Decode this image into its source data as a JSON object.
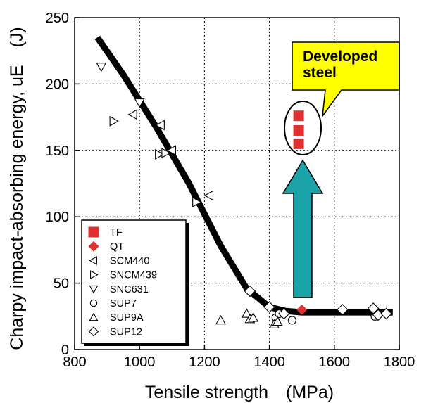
{
  "chart_data": {
    "type": "scatter",
    "title": "",
    "xlabel": "Tensile strength　(MPa)",
    "ylabel": "Charpy impact-absorbing energy, uE　(J)",
    "xlim": [
      800,
      1800
    ],
    "ylim": [
      0,
      250
    ],
    "x_ticks": [
      800,
      1000,
      1200,
      1400,
      1600,
      1800
    ],
    "y_ticks": [
      0,
      50,
      100,
      150,
      200,
      250
    ],
    "grid": "dotted",
    "legend_position": "bottom-left",
    "colors": {
      "developed": "#e03030",
      "trend": "#000000",
      "arrow": "#1aa3a8",
      "callout": "#ffff00"
    },
    "trend_line": {
      "x": [
        870,
        950,
        1050,
        1150,
        1250,
        1330,
        1400,
        1450,
        1500,
        1600,
        1700,
        1780
      ],
      "y": [
        235,
        207,
        168,
        126,
        78,
        46,
        32,
        29,
        28,
        28,
        28,
        28
      ]
    },
    "series": [
      {
        "name": "TF",
        "marker": "square-filled",
        "color": "#e03030",
        "points": [
          [
            1490,
            176
          ],
          [
            1490,
            165
          ],
          [
            1490,
            155
          ]
        ]
      },
      {
        "name": "QT",
        "marker": "diamond-filled",
        "color": "#e03030",
        "points": [
          [
            1500,
            30
          ]
        ]
      },
      {
        "name": "SCM440",
        "marker": "triangle-left",
        "color": "#000000",
        "points": [
          [
            1065,
            169
          ],
          [
            1215,
            116
          ],
          [
            1100,
            150
          ],
          [
            980,
            177
          ]
        ]
      },
      {
        "name": "SNCM439",
        "marker": "triangle-right",
        "color": "#000000",
        "points": [
          [
            920,
            172
          ],
          [
            1060,
            147
          ],
          [
            1175,
            111
          ],
          [
            1080,
            148
          ]
        ]
      },
      {
        "name": "SNC631",
        "marker": "triangle-down",
        "color": "#000000",
        "points": [
          [
            882,
            213
          ],
          [
            1000,
            186
          ]
        ]
      },
      {
        "name": "SUP7",
        "marker": "circle",
        "color": "#000000",
        "points": [
          [
            1420,
            24
          ],
          [
            1430,
            27
          ],
          [
            1470,
            22
          ],
          [
            1725,
            25
          ]
        ]
      },
      {
        "name": "SUP9A",
        "marker": "triangle-up",
        "color": "#000000",
        "points": [
          [
            1250,
            22
          ],
          [
            1330,
            27
          ],
          [
            1340,
            23
          ],
          [
            1350,
            24
          ],
          [
            1415,
            19
          ],
          [
            1425,
            21
          ]
        ]
      },
      {
        "name": "SUP12",
        "marker": "diamond",
        "color": "#000000",
        "points": [
          [
            1340,
            44
          ],
          [
            1400,
            32
          ],
          [
            1445,
            27
          ],
          [
            1625,
            30
          ],
          [
            1720,
            31
          ],
          [
            1735,
            26
          ],
          [
            1760,
            27
          ]
        ]
      }
    ],
    "annotation": {
      "line1": "Developed",
      "line2": "steel"
    }
  }
}
